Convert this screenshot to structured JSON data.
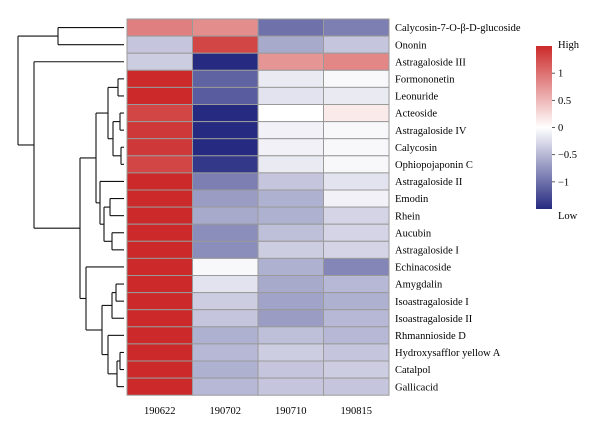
{
  "chart_data": {
    "type": "heatmap",
    "columns": [
      "190622",
      "190702",
      "190710",
      "190815"
    ],
    "rows": [
      "Calycosin-7-O-β-D-glucoside",
      "Ononin",
      "Astragaloside III",
      "Formononetin",
      "Leonuride",
      "Acteoside",
      "Astragaloside IV",
      "Calycosin",
      "Ophiopojaponin C",
      "Astragaloside II",
      "Emodin",
      "Rhein",
      "Aucubin",
      "Astragaloside I",
      "Echinacoside",
      "Amygdalin",
      "Isoastragaloside I",
      "Isoastragaloside II",
      "Rhmannioside D",
      "Hydroxysafflor yellow A",
      "Catalpol",
      "Gallicacid"
    ],
    "values": [
      [
        0.9,
        0.8,
        -1.0,
        -0.9
      ],
      [
        -0.4,
        1.3,
        -0.6,
        -0.4
      ],
      [
        -0.35,
        -1.5,
        0.75,
        0.85
      ],
      [
        1.5,
        -1.1,
        -0.15,
        -0.05
      ],
      [
        1.5,
        -1.15,
        -0.2,
        -0.15
      ],
      [
        1.3,
        -1.5,
        0.0,
        0.15
      ],
      [
        1.4,
        -1.5,
        -0.1,
        -0.05
      ],
      [
        1.4,
        -1.5,
        -0.1,
        -0.05
      ],
      [
        1.3,
        -1.4,
        -0.15,
        -0.05
      ],
      [
        1.5,
        -0.9,
        -0.4,
        -0.2
      ],
      [
        1.5,
        -0.7,
        -0.55,
        -0.1
      ],
      [
        1.5,
        -0.6,
        -0.55,
        -0.3
      ],
      [
        1.5,
        -0.8,
        -0.45,
        -0.3
      ],
      [
        1.5,
        -0.8,
        -0.35,
        -0.3
      ],
      [
        1.5,
        -0.05,
        -0.55,
        -0.85
      ],
      [
        1.5,
        -0.2,
        -0.6,
        -0.5
      ],
      [
        1.5,
        -0.35,
        -0.65,
        -0.55
      ],
      [
        1.5,
        -0.4,
        -0.7,
        -0.5
      ],
      [
        1.5,
        -0.55,
        -0.45,
        -0.5
      ],
      [
        1.5,
        -0.5,
        -0.35,
        -0.4
      ],
      [
        1.5,
        -0.55,
        -0.4,
        -0.35
      ],
      [
        1.5,
        -0.5,
        -0.4,
        -0.4
      ]
    ],
    "colorbar": {
      "high_label": "High",
      "low_label": "Low",
      "ticks": [
        1,
        0.5,
        0,
        -0.5,
        -1
      ],
      "tick_labels": [
        "1",
        "0.5",
        "0",
        "−0.5",
        "−1"
      ],
      "range": [
        -1.5,
        1.5
      ],
      "high_color": "#cc2a2a",
      "mid_color": "#ffffff",
      "low_color": "#262a80"
    },
    "dendrogram": "row clustering tree shown at left"
  }
}
